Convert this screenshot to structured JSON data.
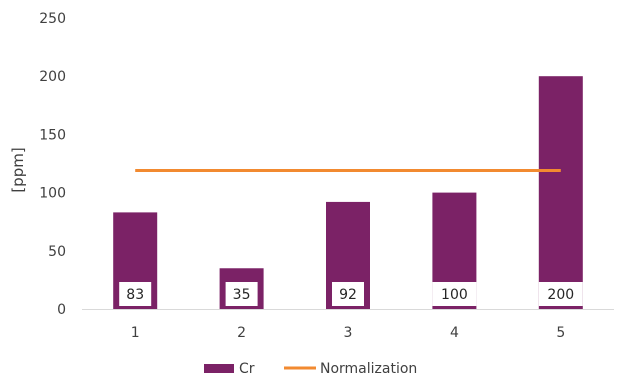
{
  "chart_data": {
    "type": "bar",
    "title": "",
    "xlabel": "",
    "ylabel": "[ppm]",
    "categories": [
      "1",
      "2",
      "3",
      "4",
      "5"
    ],
    "ylim": [
      0,
      250
    ],
    "yticks": [
      0,
      50,
      100,
      150,
      200,
      250
    ],
    "grid": false,
    "series": [
      {
        "name": "Cr",
        "type": "bar",
        "values": [
          83,
          35,
          92,
          100,
          200
        ],
        "color": "#7B2266"
      },
      {
        "name": "Normalization",
        "type": "line",
        "values": [
          119,
          119,
          119,
          119,
          119
        ],
        "color": "#F28A30"
      }
    ],
    "data_labels": [
      "83",
      "35",
      "92",
      "100",
      "200"
    ],
    "legend": {
      "position": "bottom",
      "items": [
        "Cr",
        "Normalization"
      ]
    }
  }
}
